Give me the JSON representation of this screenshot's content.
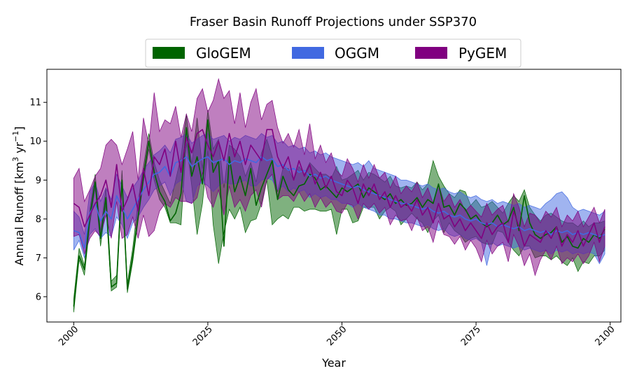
{
  "chart_data": {
    "type": "area",
    "title": "Fraser Basin Runoff Projections under SSP370",
    "xlabel": "Year",
    "ylabel_main": "Annual Runoff [km",
    "ylabel_sup1": "3",
    "ylabel_mid": " yr",
    "ylabel_sup2": "−1",
    "ylabel_end": "]",
    "xlim": [
      1995,
      2102
    ],
    "ylim": [
      5.35,
      11.85
    ],
    "xticks": [
      2000,
      2025,
      2050,
      2075,
      2100
    ],
    "yticks": [
      6,
      7,
      8,
      9,
      10,
      11
    ],
    "legend_position": "top-center",
    "legend": [
      "GloGEM",
      "OGGM",
      "PyGEM"
    ],
    "x": [
      2000,
      2001,
      2002,
      2003,
      2004,
      2005,
      2006,
      2007,
      2008,
      2009,
      2010,
      2011,
      2012,
      2013,
      2014,
      2015,
      2016,
      2017,
      2018,
      2019,
      2020,
      2021,
      2022,
      2023,
      2024,
      2025,
      2026,
      2027,
      2028,
      2029,
      2030,
      2031,
      2032,
      2033,
      2034,
      2035,
      2036,
      2037,
      2038,
      2039,
      2040,
      2041,
      2042,
      2043,
      2044,
      2045,
      2046,
      2047,
      2048,
      2049,
      2050,
      2051,
      2052,
      2053,
      2054,
      2055,
      2056,
      2057,
      2058,
      2059,
      2060,
      2061,
      2062,
      2063,
      2064,
      2065,
      2066,
      2067,
      2068,
      2069,
      2070,
      2071,
      2072,
      2073,
      2074,
      2075,
      2076,
      2077,
      2078,
      2079,
      2080,
      2081,
      2082,
      2083,
      2084,
      2085,
      2086,
      2087,
      2088,
      2089,
      2090,
      2091,
      2092,
      2093,
      2094,
      2095,
      2096,
      2097,
      2098,
      2099
    ],
    "series": [
      {
        "name": "GloGEM",
        "color": "#006400",
        "mean": [
          5.75,
          7.05,
          6.7,
          8.05,
          8.95,
          7.5,
          8.55,
          6.25,
          6.35,
          9.0,
          6.2,
          7.05,
          8.05,
          9.1,
          10.0,
          9.2,
          8.7,
          8.45,
          7.95,
          8.15,
          8.65,
          10.35,
          9.1,
          9.6,
          8.9,
          10.55,
          9.2,
          9.5,
          7.3,
          9.6,
          8.7,
          9.1,
          8.6,
          9.3,
          8.35,
          8.8,
          9.15,
          9.5,
          8.5,
          9.1,
          8.75,
          8.6,
          8.85,
          8.9,
          9.15,
          9.05,
          8.75,
          8.85,
          8.7,
          8.55,
          8.8,
          8.7,
          8.8,
          8.9,
          8.55,
          8.8,
          8.7,
          8.6,
          8.5,
          8.65,
          8.4,
          8.5,
          8.35,
          8.4,
          8.55,
          8.3,
          8.5,
          8.4,
          8.9,
          8.3,
          8.35,
          8.1,
          8.4,
          8.25,
          8.0,
          8.1,
          7.9,
          7.8,
          7.9,
          8.1,
          7.85,
          7.95,
          8.3,
          7.7,
          8.6,
          7.9,
          7.6,
          7.5,
          7.6,
          7.65,
          7.8,
          7.4,
          7.55,
          7.3,
          7.25,
          7.5,
          7.4,
          7.6,
          7.5,
          7.75
        ],
        "lower": [
          5.6,
          6.95,
          6.55,
          7.85,
          8.8,
          7.3,
          8.35,
          6.15,
          6.25,
          8.95,
          6.1,
          6.9,
          7.95,
          8.95,
          9.8,
          9.0,
          8.5,
          8.3,
          7.9,
          7.9,
          7.85,
          9.95,
          8.85,
          7.6,
          8.4,
          9.75,
          7.85,
          6.85,
          7.65,
          8.25,
          8.0,
          8.3,
          7.65,
          7.95,
          8.0,
          8.4,
          9.0,
          7.85,
          8.0,
          8.1,
          8.0,
          8.3,
          8.3,
          8.2,
          8.25,
          8.25,
          8.2,
          8.2,
          8.25,
          7.6,
          8.25,
          8.25,
          7.9,
          7.95,
          8.3,
          8.3,
          8.3,
          8.0,
          8.2,
          8.3,
          8.2,
          7.85,
          8.0,
          8.15,
          8.0,
          7.9,
          7.65,
          7.95,
          8.1,
          7.65,
          7.9,
          7.7,
          7.6,
          7.4,
          7.5,
          7.55,
          7.4,
          7.35,
          7.35,
          7.7,
          7.65,
          7.4,
          7.2,
          7.05,
          7.3,
          7.3,
          7.0,
          7.05,
          7.05,
          6.95,
          7.05,
          6.9,
          6.8,
          7.0,
          6.65,
          6.9,
          6.85,
          7.05,
          7.05,
          7.2
        ],
        "upper": [
          5.95,
          7.25,
          6.8,
          8.25,
          9.15,
          7.7,
          8.8,
          6.4,
          6.55,
          9.25,
          6.35,
          7.25,
          8.45,
          9.35,
          10.2,
          9.45,
          9.0,
          8.7,
          8.4,
          9.0,
          9.6,
          10.7,
          9.4,
          10.6,
          9.3,
          10.8,
          9.8,
          10.05,
          8.8,
          9.9,
          9.8,
          9.6,
          9.1,
          9.45,
          8.95,
          9.7,
          10.05,
          9.6,
          8.7,
          9.3,
          9.3,
          9.0,
          9.35,
          9.15,
          9.45,
          9.3,
          9.15,
          9.15,
          9.05,
          9.35,
          9.0,
          9.05,
          9.15,
          9.25,
          9.0,
          9.2,
          9.15,
          9.05,
          8.95,
          9.1,
          8.85,
          8.8,
          8.85,
          8.8,
          8.95,
          8.75,
          8.9,
          9.5,
          9.1,
          8.85,
          8.65,
          8.55,
          8.75,
          8.7,
          8.35,
          8.5,
          8.3,
          8.35,
          8.45,
          8.3,
          8.15,
          8.4,
          8.6,
          8.45,
          8.75,
          8.3,
          8.1,
          7.95,
          8.1,
          8.15,
          8.05,
          7.95,
          7.9,
          7.9,
          7.8,
          7.95,
          7.8,
          7.9,
          7.9,
          7.95
        ]
      },
      {
        "name": "OGGM",
        "color": "#4169e1",
        "mean": [
          7.7,
          7.65,
          7.25,
          8.15,
          8.4,
          7.95,
          8.2,
          8.0,
          8.6,
          8.3,
          8.0,
          8.25,
          8.5,
          8.75,
          8.95,
          9.15,
          9.2,
          9.35,
          9.1,
          9.45,
          9.5,
          9.6,
          9.35,
          9.45,
          9.55,
          9.6,
          9.45,
          9.5,
          9.55,
          9.4,
          9.5,
          9.45,
          9.55,
          9.5,
          9.45,
          9.6,
          9.5,
          9.55,
          9.35,
          9.4,
          9.25,
          9.3,
          9.2,
          9.25,
          9.1,
          9.15,
          9.05,
          9.1,
          9.0,
          8.95,
          8.9,
          8.85,
          8.8,
          8.85,
          8.75,
          8.7,
          8.65,
          8.6,
          8.55,
          8.5,
          8.45,
          8.4,
          8.4,
          8.35,
          8.3,
          8.25,
          8.3,
          8.2,
          8.15,
          8.2,
          8.1,
          8.05,
          8.1,
          8.0,
          7.95,
          8.0,
          7.9,
          7.85,
          7.9,
          7.8,
          7.85,
          7.8,
          7.75,
          7.8,
          7.7,
          7.75,
          7.7,
          7.65,
          7.7,
          7.6,
          7.7,
          7.65,
          7.7,
          7.6,
          7.65,
          7.6,
          7.65,
          7.6,
          7.55,
          7.6
        ],
        "lower": [
          7.2,
          7.45,
          7.0,
          7.6,
          7.75,
          7.5,
          7.65,
          7.55,
          8.05,
          7.85,
          7.5,
          7.9,
          8.05,
          8.3,
          8.5,
          8.75,
          8.85,
          8.95,
          8.6,
          8.9,
          9.0,
          8.45,
          8.4,
          8.85,
          8.95,
          8.85,
          8.7,
          8.85,
          8.95,
          8.9,
          8.9,
          8.95,
          9.0,
          8.85,
          8.85,
          9.0,
          9.05,
          9.0,
          8.75,
          8.85,
          8.7,
          8.8,
          8.7,
          8.75,
          8.55,
          8.65,
          8.55,
          8.6,
          8.5,
          8.5,
          8.4,
          8.4,
          8.3,
          8.4,
          8.3,
          8.25,
          8.2,
          8.1,
          8.1,
          8.0,
          8.0,
          7.95,
          7.9,
          7.9,
          7.85,
          7.8,
          7.85,
          7.75,
          7.7,
          7.75,
          7.6,
          7.55,
          7.6,
          7.5,
          7.45,
          7.5,
          7.4,
          6.8,
          7.4,
          7.3,
          7.35,
          7.3,
          7.25,
          7.3,
          7.2,
          7.25,
          7.2,
          7.15,
          7.2,
          7.1,
          7.2,
          7.15,
          7.2,
          7.1,
          7.15,
          7.1,
          7.15,
          7.1,
          6.85,
          7.1
        ],
        "upper": [
          8.2,
          8.05,
          7.6,
          8.7,
          8.95,
          8.45,
          8.8,
          8.5,
          9.15,
          8.85,
          8.55,
          8.8,
          9.0,
          9.25,
          9.45,
          9.65,
          9.75,
          9.9,
          9.7,
          10.05,
          10.1,
          10.2,
          9.95,
          10.05,
          10.15,
          10.2,
          10.05,
          10.1,
          10.15,
          10.0,
          10.1,
          10.05,
          10.15,
          10.1,
          10.05,
          10.2,
          10.1,
          10.15,
          9.95,
          10.0,
          9.85,
          9.9,
          9.8,
          9.85,
          9.7,
          9.75,
          9.65,
          9.7,
          9.6,
          9.55,
          9.5,
          9.45,
          9.4,
          9.45,
          9.35,
          9.5,
          9.3,
          9.25,
          9.2,
          9.15,
          9.1,
          9.0,
          9.0,
          8.95,
          8.9,
          8.85,
          8.9,
          8.8,
          8.75,
          8.8,
          8.7,
          8.65,
          8.7,
          8.6,
          8.55,
          8.6,
          8.5,
          8.45,
          8.5,
          8.4,
          8.45,
          8.4,
          8.35,
          8.4,
          8.3,
          8.35,
          8.3,
          8.25,
          8.4,
          8.5,
          8.65,
          8.7,
          8.55,
          8.3,
          8.2,
          8.25,
          8.2,
          8.15,
          8.1,
          8.2
        ]
      },
      {
        "name": "PyGEM",
        "color": "#800080",
        "mean": [
          8.4,
          8.3,
          7.8,
          8.1,
          8.4,
          8.6,
          9.0,
          8.3,
          9.4,
          8.2,
          8.5,
          8.9,
          8.2,
          9.3,
          8.6,
          9.6,
          9.4,
          9.8,
          9.1,
          10.0,
          9.2,
          10.1,
          9.7,
          10.2,
          10.3,
          9.9,
          9.6,
          10.0,
          9.5,
          10.2,
          9.6,
          10.0,
          9.4,
          9.9,
          9.7,
          9.5,
          10.3,
          10.3,
          9.6,
          9.3,
          9.6,
          9.0,
          9.5,
          9.1,
          9.4,
          8.9,
          9.2,
          8.8,
          9.1,
          8.7,
          8.6,
          9.0,
          8.8,
          8.4,
          8.9,
          8.6,
          8.9,
          8.5,
          8.7,
          8.3,
          8.6,
          8.3,
          8.4,
          8.2,
          8.5,
          8.1,
          8.3,
          7.9,
          8.4,
          8.0,
          8.1,
          7.8,
          8.0,
          7.7,
          7.9,
          7.7,
          7.5,
          7.9,
          7.6,
          7.8,
          7.9,
          7.4,
          8.2,
          7.8,
          7.3,
          7.6,
          7.5,
          7.4,
          7.7,
          7.5,
          7.8,
          7.3,
          7.6,
          7.4,
          7.7,
          7.3,
          7.6,
          7.9,
          7.4,
          7.8
        ],
        "lower": [
          7.55,
          7.6,
          7.1,
          7.5,
          7.7,
          7.55,
          8.1,
          7.5,
          8.45,
          7.5,
          7.6,
          8.05,
          7.5,
          8.1,
          7.55,
          7.7,
          8.2,
          8.4,
          8.3,
          8.55,
          8.45,
          8.45,
          8.4,
          8.55,
          9.2,
          8.55,
          8.3,
          8.75,
          8.1,
          8.85,
          8.3,
          8.5,
          8.2,
          8.6,
          8.75,
          8.3,
          9.0,
          9.15,
          8.5,
          8.6,
          8.6,
          8.45,
          8.7,
          8.45,
          8.65,
          8.3,
          8.55,
          8.3,
          8.45,
          8.2,
          8.15,
          8.4,
          8.35,
          8.0,
          8.4,
          8.25,
          8.4,
          8.15,
          8.3,
          7.85,
          8.1,
          7.95,
          8.0,
          7.7,
          8.05,
          7.7,
          7.8,
          7.4,
          7.95,
          7.6,
          7.55,
          7.35,
          7.55,
          7.2,
          7.45,
          7.25,
          6.9,
          7.45,
          7.1,
          7.3,
          7.4,
          6.9,
          7.6,
          7.3,
          6.8,
          7.1,
          6.55,
          6.95,
          7.2,
          6.95,
          7.3,
          6.85,
          7.0,
          6.9,
          7.1,
          6.85,
          7.05,
          7.4,
          6.9,
          7.3
        ],
        "upper": [
          9.05,
          9.3,
          8.45,
          8.75,
          9.1,
          9.3,
          9.9,
          10.05,
          9.9,
          9.4,
          9.8,
          10.25,
          9.0,
          10.6,
          9.9,
          11.25,
          10.25,
          10.55,
          10.45,
          10.9,
          10.1,
          10.7,
          10.25,
          11.1,
          11.35,
          10.75,
          11.05,
          11.6,
          11.1,
          11.3,
          10.45,
          11.25,
          10.35,
          11.0,
          11.35,
          10.55,
          10.95,
          11.05,
          10.35,
          9.95,
          10.2,
          9.85,
          10.3,
          9.65,
          10.45,
          9.55,
          9.9,
          9.45,
          9.7,
          9.25,
          9.1,
          9.55,
          9.3,
          8.95,
          9.4,
          9.05,
          9.4,
          9.05,
          9.2,
          8.8,
          9.1,
          8.65,
          8.85,
          8.7,
          8.95,
          8.55,
          8.8,
          8.4,
          8.9,
          8.45,
          8.65,
          8.3,
          8.5,
          8.2,
          8.35,
          8.2,
          8.05,
          8.4,
          8.1,
          8.25,
          8.35,
          7.9,
          8.65,
          8.3,
          7.8,
          8.15,
          8.1,
          7.9,
          8.2,
          8.05,
          8.3,
          7.8,
          8.1,
          7.95,
          8.2,
          7.8,
          8.05,
          8.3,
          7.9,
          8.25
        ]
      }
    ]
  }
}
